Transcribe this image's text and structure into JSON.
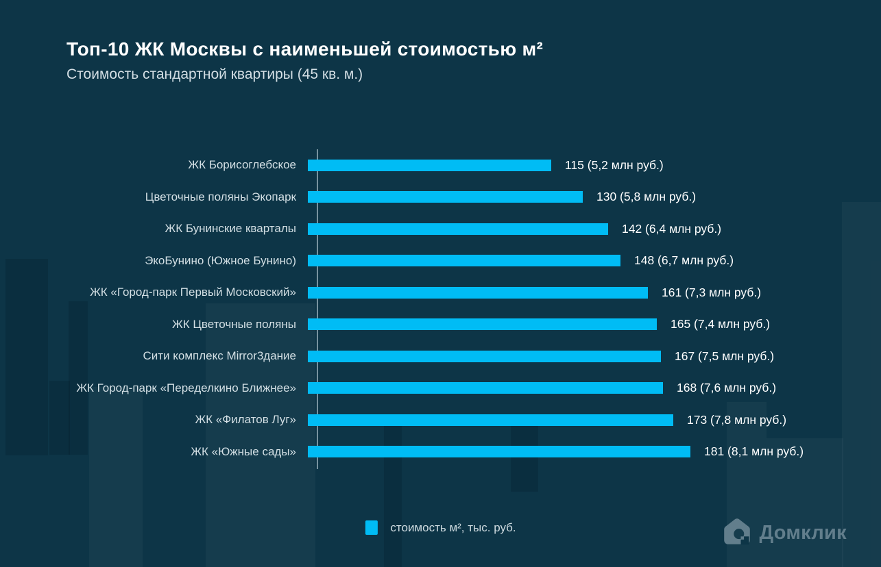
{
  "title": "Топ-10 ЖК Москвы с наименьшей стоимостью м²",
  "subtitle": "Стоимость стандартной квартиры (45 кв. м.)",
  "legend": {
    "label": "стоимость м², тыс. руб.",
    "swatch_color": "#00bcf5"
  },
  "brand": {
    "name": "Домклик",
    "icon": "domclick-house-icon",
    "color": "#627e8c"
  },
  "colors": {
    "background": "#0d3547",
    "bar": "#00bcf5",
    "axis_line": "#b0c6d0",
    "title_text": "#ffffff",
    "category_text": "#d3dfe4",
    "value_text": "#ffffff"
  },
  "chart_data": {
    "type": "bar",
    "orientation": "horizontal",
    "title": "Топ-10 ЖК Москвы с наименьшей стоимостью м²",
    "subtitle": "Стоимость стандартной квартиры (45 кв. м.)",
    "xlabel": "",
    "ylabel": "",
    "xlim": [
      0,
      181
    ],
    "grid": false,
    "legend_position": "bottom-center",
    "legend_label": "стоимость м², тыс. руб.",
    "categories": [
      "ЖК Борисоглебское",
      "Цветочные поляны Экопарк",
      "ЖК Бунинские кварталы",
      "ЭкоБунино (Южное Бунино)",
      "ЖК «Город-парк Первый Московский»",
      "ЖК Цветочные поляны",
      "Сити комплекс Mirror3дание",
      "ЖК Город-парк «Переделкино Ближнее»",
      "ЖК «Филатов Луг»",
      "ЖК «Южные сады»"
    ],
    "values": [
      115,
      130,
      142,
      148,
      161,
      165,
      167,
      168,
      173,
      181
    ],
    "value_labels": [
      "115 (5,2 млн руб.)",
      "130 (5,8 млн руб.)",
      "142 (6,4 млн руб.)",
      "148 (6,7 млн руб.)",
      "161 (7,3 млн руб.)",
      "165 (7,4 млн руб.)",
      "167 (7,5 млн руб.)",
      "168 (7,6 млн руб.)",
      "173 (7,8 млн руб.)",
      "181 (8,1 млн руб.)"
    ]
  }
}
